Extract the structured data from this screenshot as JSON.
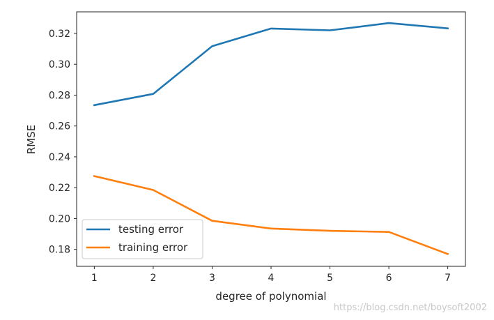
{
  "chart_data": {
    "type": "line",
    "xlabel": "degree of polynomial",
    "ylabel": "RMSE",
    "x": [
      1,
      2,
      3,
      4,
      5,
      6,
      7
    ],
    "xlim": [
      0.7,
      7.3
    ],
    "ylim": [
      0.169,
      0.334
    ],
    "xticks": [
      "1",
      "2",
      "3",
      "4",
      "5",
      "6",
      "7"
    ],
    "yticks": [
      "0.18",
      "0.20",
      "0.22",
      "0.24",
      "0.26",
      "0.28",
      "0.30",
      "0.32"
    ],
    "legend_position": "lower-left",
    "grid": false,
    "series": [
      {
        "name": "testing error",
        "color": "#1f77b4",
        "values": [
          0.2735,
          0.2808,
          0.3117,
          0.3232,
          0.322,
          0.3267,
          0.3233
        ]
      },
      {
        "name": "training error",
        "color": "#ff7f0e",
        "values": [
          0.2275,
          0.2185,
          0.1985,
          0.1935,
          0.192,
          0.1913,
          0.177
        ]
      }
    ]
  },
  "watermark": "https://blog.csdn.net/boysoft2002"
}
